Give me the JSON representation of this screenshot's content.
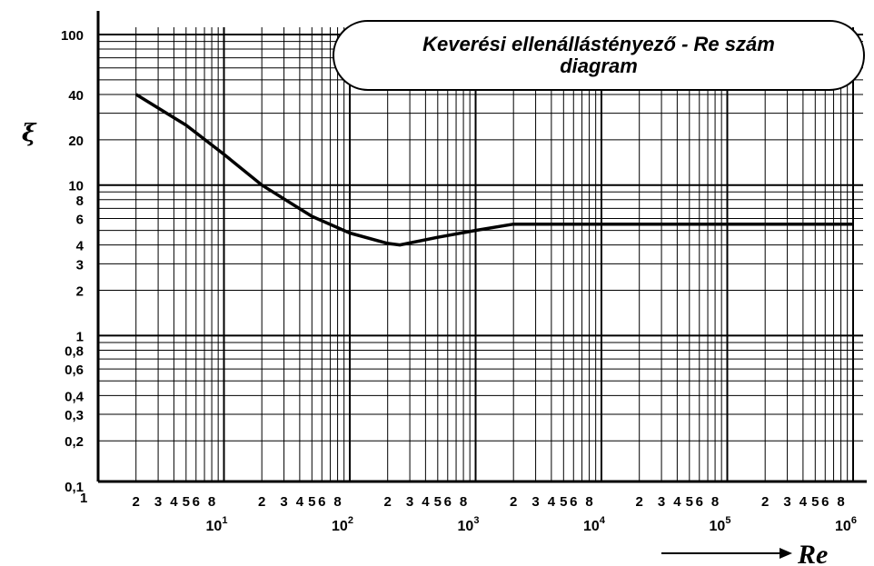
{
  "chart_data": {
    "type": "line",
    "title_lines": [
      "Keverési ellenállástényező - Re szám",
      "diagram"
    ],
    "ylabel": "ξ",
    "xlabel": "Re",
    "x_scale": "log",
    "y_scale": "log",
    "xlim": [
      1,
      1300000
    ],
    "ylim": [
      0.1,
      150
    ],
    "grid": true,
    "y_tick_labels": [
      {
        "v": 100,
        "t": "100"
      },
      {
        "v": 40,
        "t": "40"
      },
      {
        "v": 20,
        "t": "20"
      },
      {
        "v": 10,
        "t": "10"
      },
      {
        "v": 8,
        "t": "8"
      },
      {
        "v": 6,
        "t": "6"
      },
      {
        "v": 4,
        "t": "4"
      },
      {
        "v": 3,
        "t": "3"
      },
      {
        "v": 2,
        "t": "2"
      },
      {
        "v": 1,
        "t": "1"
      },
      {
        "v": 0.8,
        "t": "0,8"
      },
      {
        "v": 0.6,
        "t": "0,6"
      },
      {
        "v": 0.4,
        "t": "0,4"
      },
      {
        "v": 0.3,
        "t": "0,3"
      },
      {
        "v": 0.2,
        "t": "0,2"
      },
      {
        "v": 0.1,
        "t": "0,1"
      }
    ],
    "x_minor_labels": [
      "2",
      "3",
      "4",
      "5",
      "6",
      "8"
    ],
    "x_origin_label": "1",
    "x_major_labels": [
      {
        "base": "10",
        "exp": "1"
      },
      {
        "base": "10",
        "exp": "2"
      },
      {
        "base": "10",
        "exp": "3"
      },
      {
        "base": "10",
        "exp": "4"
      },
      {
        "base": "10",
        "exp": "5"
      },
      {
        "base": "10",
        "exp": "6"
      }
    ],
    "series": [
      {
        "x": [
          2,
          5,
          10,
          20,
          50,
          100,
          200,
          250,
          500,
          1000,
          2000,
          10000,
          100000,
          1000000
        ],
        "y": [
          40,
          25,
          16,
          10,
          6.2,
          4.8,
          4.1,
          4.0,
          4.5,
          5.0,
          5.5,
          5.5,
          5.5,
          5.5
        ]
      }
    ]
  }
}
